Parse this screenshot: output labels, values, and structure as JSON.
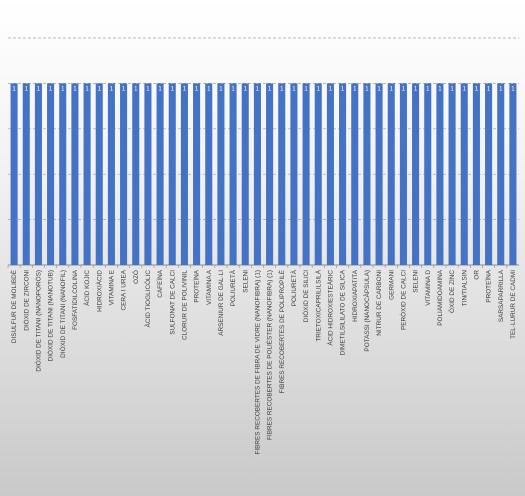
{
  "chart_data": {
    "type": "bar",
    "categories": [
      "DISULFUR DE MOLIBDÈ",
      "DIÒXID DE ZIRCONI",
      "DIÒXID DE TITANI (NANOPORÓS)",
      "DIÒXID DE TITANI (NANOTUB)",
      "DIÒXID DE TITANI (NANOFIL)",
      "FOSFATIDILCOLINA",
      "ÀCID KOJIC",
      "HIDROXIÀCID",
      "VITAMINA E",
      "CERA I UREA",
      "OZÓ",
      "ÀCID TIOGLICÒLIC",
      "CAFEÏNA",
      "SULFONAT DE CALCI",
      "CLORUR DE POLIVINIL",
      "PROTEÏNA",
      "VITAMINA A",
      "ARSENIUR DE GAL·LI",
      "POLIURETÀ",
      "SELENI",
      "FIBRES RECOBERTES DE FIBRA DE VIDRE (NANOFIBRA) (1)",
      "FIBRES RECOBERTES DE POLIÈSTER (NANOFIBRA) (1)",
      "FIBRES RECOBERTES DE POLIPROPILÈ",
      "POLIURETÀ",
      "DIÒXID DE SILICI",
      "TRIETOXICAPRILILSILÀ",
      "ÀCID HIDROXIESTEÀRIC",
      "DIMETILSILILATO DE SILICA",
      "HIDROXIAPATITA",
      "POTASSI (NANOCÀPSULA)",
      "NITRUR DE CARBONI",
      "GERMANI",
      "PERÒXID DE CALCI",
      "SELENI",
      "VITAMINA D",
      "POLIAMIDOAMINA",
      "ÒXID DE ZINC",
      "TIN/TIALSIN",
      "OR",
      "PROTEÏNA",
      "SARSAPARRILLA",
      "TEL·LURUR DE CADMI"
    ],
    "values": [
      1,
      1,
      1,
      1,
      1,
      1,
      1,
      1,
      1,
      1,
      1,
      1,
      1,
      1,
      1,
      1,
      1,
      1,
      1,
      1,
      1,
      1,
      1,
      1,
      1,
      1,
      1,
      1,
      1,
      1,
      1,
      1,
      1,
      1,
      1,
      1,
      1,
      1,
      1,
      1,
      1,
      1
    ],
    "data_labels": [
      "1",
      "1",
      "1",
      "1",
      "1",
      "1",
      "1",
      "1",
      "1",
      "1",
      "1",
      "1",
      "1",
      "1",
      "1",
      "1",
      "1",
      "1",
      "1",
      "1",
      "1",
      "1",
      "1",
      "1",
      "1",
      "1",
      "1",
      "1",
      "1",
      "1",
      "1",
      "1",
      "1",
      "1",
      "1",
      "1",
      "1",
      "1",
      "1",
      "1",
      "1",
      "1"
    ],
    "ylim": [
      0,
      1.25
    ],
    "grid": true,
    "bar_color": "#4472c4",
    "label_color": "#ffffff",
    "axis_text_color": "#404040",
    "grid_color": "#9aa3ad"
  }
}
